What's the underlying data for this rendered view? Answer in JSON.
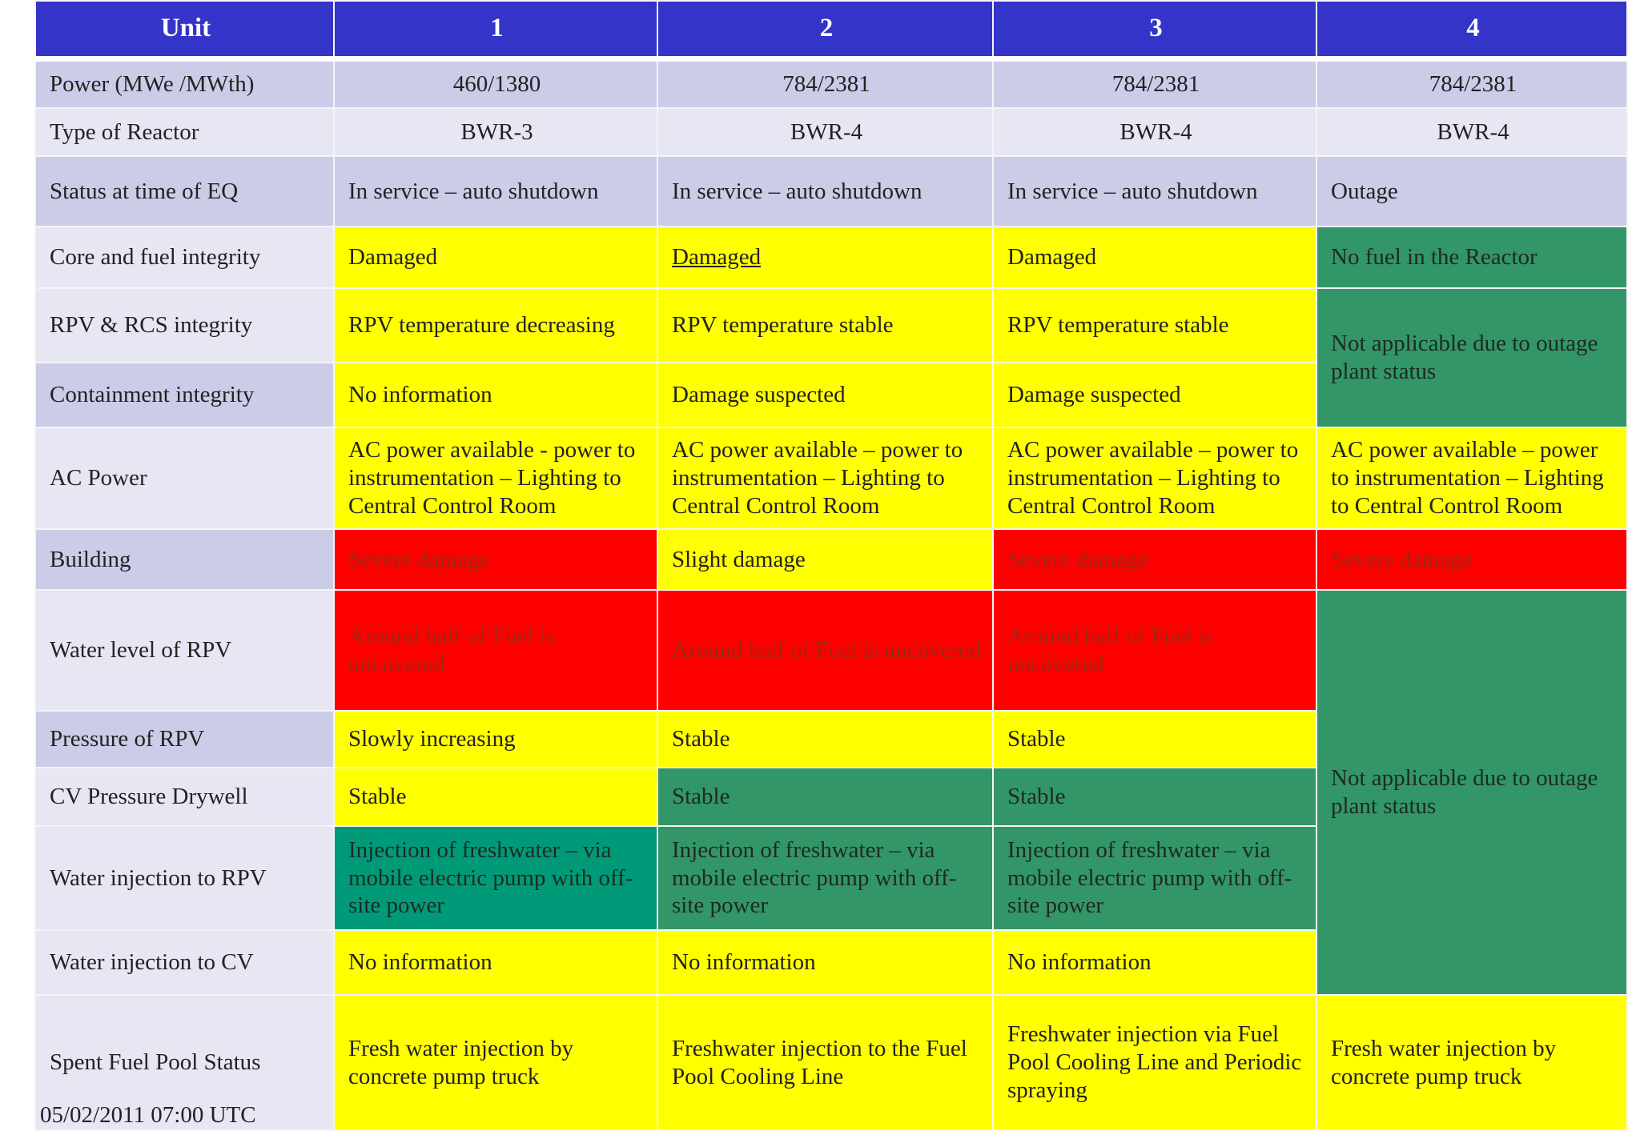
{
  "header": [
    "Unit",
    "1",
    "2",
    "3",
    "4"
  ],
  "rows": [
    {
      "label": "Power (MWe /MWth)",
      "cells": [
        "460/1380",
        "784/2381",
        "784/2381",
        "784/2381"
      ]
    },
    {
      "label": "Type of Reactor",
      "cells": [
        "BWR-3",
        "BWR-4",
        "BWR-4",
        "BWR-4"
      ]
    },
    {
      "label": "Status at time of EQ",
      "cells": [
        "In service – auto shutdown",
        "In service – auto shutdown",
        "In service – auto shutdown",
        "Outage"
      ]
    },
    {
      "label": "Core and fuel integrity",
      "cells": [
        "Damaged",
        "Damaged",
        "Damaged",
        "No fuel in the Reactor"
      ]
    },
    {
      "label": "RPV & RCS integrity",
      "cells": [
        "RPV temperature decreasing",
        "RPV temperature stable",
        "RPV temperature stable",
        "Not applicable due to outage plant status"
      ]
    },
    {
      "label": "Containment integrity",
      "cells": [
        "No information",
        "Damage suspected",
        "Damage suspected"
      ]
    },
    {
      "label": "AC Power",
      "cells": [
        "AC power available - power to instrumentation – Lighting to Central Control Room",
        "AC power available – power to instrumentation – Lighting to Central Control Room",
        "AC power available – power to instrumentation – Lighting to Central Control Room",
        "AC power available – power to instrumentation – Lighting to Central Control Room"
      ]
    },
    {
      "label": "Building",
      "cells": [
        "Severe damage",
        "Slight damage",
        "Severe damage",
        "Severe damage"
      ]
    },
    {
      "label": "Water level of RPV",
      "cells": [
        "Around half of Fuel is uncovered",
        "Around half of Fuel is uncovered",
        "Around half of Fuel is uncovered",
        "Not applicable due to outage plant status"
      ]
    },
    {
      "label": "Pressure of RPV",
      "cells": [
        "Slowly increasing",
        "Stable",
        "Stable"
      ]
    },
    {
      "label": "CV Pressure Drywell",
      "cells": [
        "Stable",
        "Stable",
        "Stable"
      ]
    },
    {
      "label": "Water injection to RPV",
      "cells": [
        "Injection of freshwater – via mobile electric pump with off-site power",
        "Injection of freshwater – via mobile electric pump with off-site power",
        "Injection of freshwater – via mobile electric pump with off-site power"
      ]
    },
    {
      "label": "Water injection to CV",
      "cells": [
        "No information",
        "No information",
        "No information"
      ]
    },
    {
      "label": "Spent Fuel Pool Status",
      "cells": [
        "Fresh water injection by concrete pump truck",
        "Freshwater injection to the Fuel Pool Cooling Line",
        "Freshwater injection via Fuel Pool Cooling Line and Periodic spraying",
        "Fresh water injection by concrete pump truck"
      ]
    }
  ],
  "footnote": "05/02/2011 07:00 UTC"
}
